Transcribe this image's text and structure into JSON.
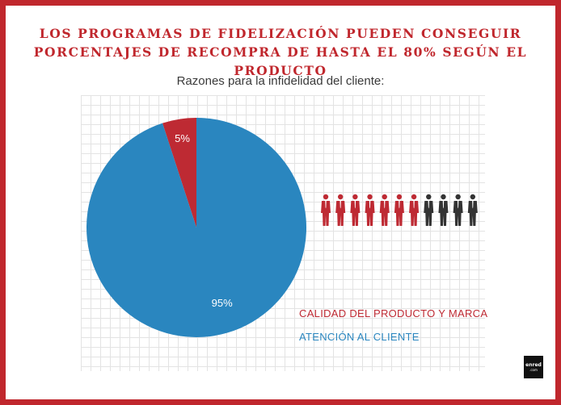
{
  "header": {
    "line1": "LOS PROGRAMAS DE FIDELIZACIÓN PUEDEN CONSEGUIR",
    "line2": "PORCENTAJES DE RECOMPRA DE HASTA EL 80% SEGÚN EL PRODUCTO"
  },
  "chart_data": {
    "type": "pie",
    "title": "Razones para la infidelidad del cliente:",
    "slices": [
      {
        "label": "CALIDAD DEL PRODUCTO Y MARCA",
        "value": 5,
        "display": "5%",
        "color": "#be2a33"
      },
      {
        "label": "ATENCIÓN AL CLIENTE",
        "value": 95,
        "display": "95%",
        "color": "#2a86bf"
      }
    ],
    "legend_position": "bottom-right"
  },
  "people_icons": {
    "total": 11,
    "highlighted": 7,
    "highlight_color": "#be2a33",
    "base_color": "#333333"
  },
  "logo": {
    "line1": "enred",
    "line2": ".com"
  },
  "colors": {
    "frame": "#c0272d",
    "headline": "#c0272d"
  }
}
